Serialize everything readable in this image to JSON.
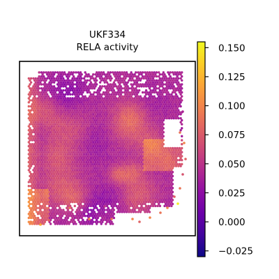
{
  "chart_data": {
    "type": "heatmap",
    "title_lines": [
      "UKF334",
      "RELA activity"
    ],
    "colormap": "plasma",
    "colorbar": {
      "min": -0.03,
      "max": 0.155,
      "ticks": [
        0.15,
        0.125,
        0.1,
        0.075,
        0.05,
        0.025,
        0.0,
        -0.025
      ],
      "tick_labels": [
        "0.150",
        "0.125",
        "0.100",
        "0.075",
        "0.050",
        "0.025",
        "0.000",
        "−0.025"
      ]
    },
    "value_summary": {
      "typical_range": [
        0.0,
        0.08
      ],
      "bulk_mean": 0.04,
      "max_outlier": 0.15,
      "high_regions": [
        "left edge",
        "right-middle edge",
        "lower-left corner"
      ]
    },
    "grid": false,
    "axes_ticks": false,
    "legend": "colorbar right"
  }
}
